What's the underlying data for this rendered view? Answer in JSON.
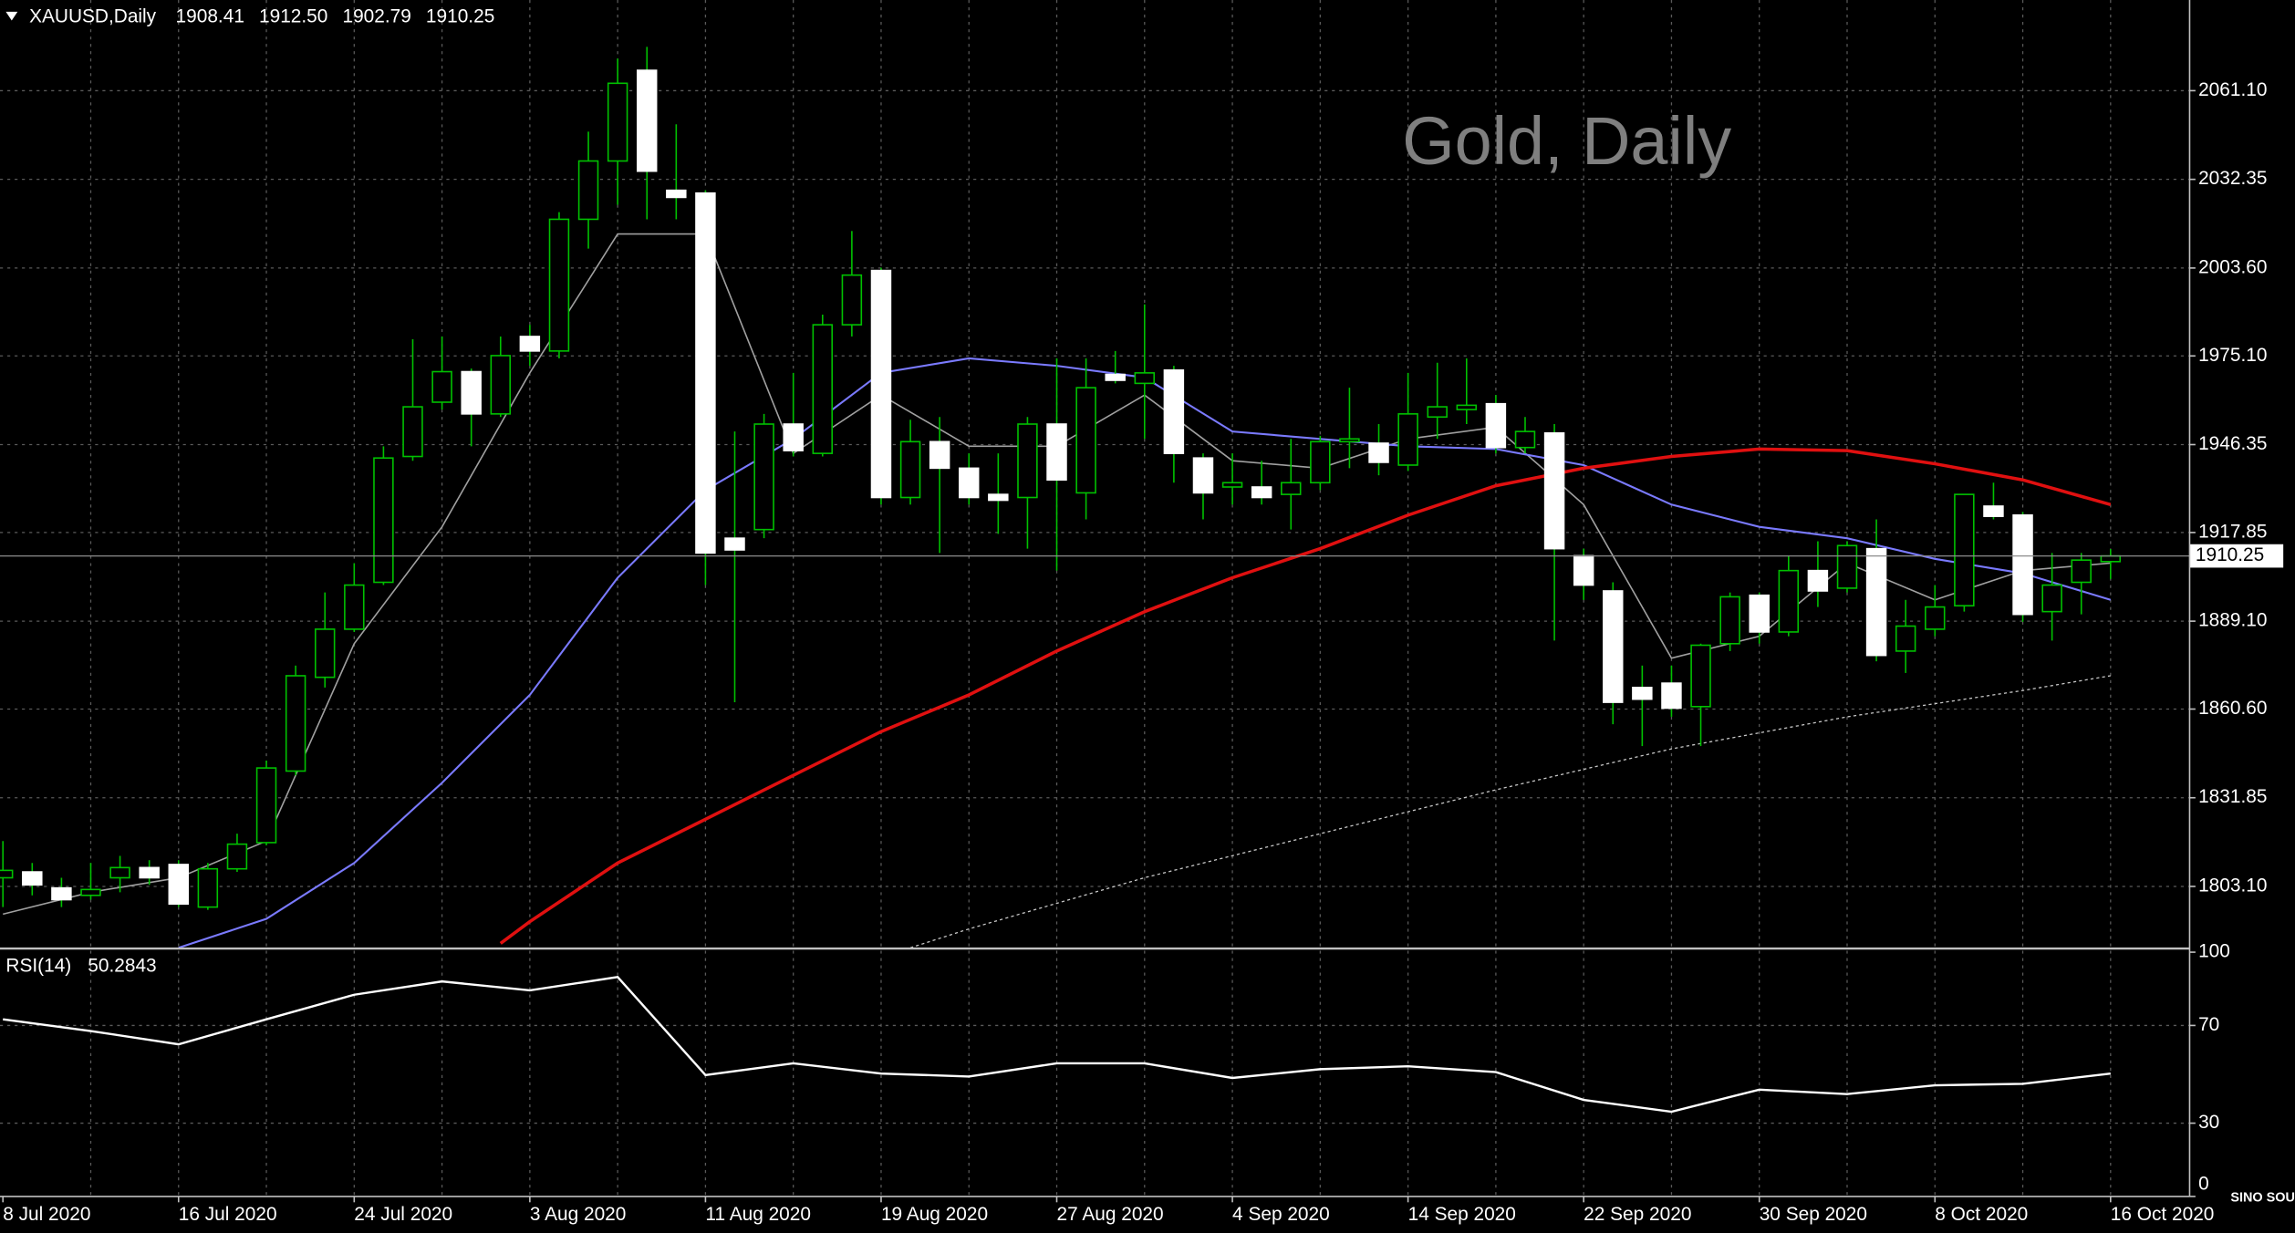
{
  "logo": "SINO SOUND",
  "chart_data": [
    {
      "type": "candlestick",
      "quote": {
        "symbol": "XAUUSD,Daily",
        "values": [
          1908.41,
          1912.5,
          1902.79,
          1910.25
        ],
        "value_labels": [
          "1908.41",
          "1912.50",
          "1902.79",
          "1910.25"
        ]
      },
      "watermark": "Gold, Daily",
      "categories": [
        "8 Jul 2020",
        null,
        null,
        null,
        null,
        null,
        "16 Jul 2020",
        null,
        null,
        null,
        null,
        null,
        "24 Jul 2020",
        null,
        null,
        null,
        null,
        null,
        "3 Aug 2020",
        null,
        null,
        null,
        null,
        null,
        "11 Aug 2020",
        null,
        null,
        null,
        null,
        null,
        "19 Aug 2020",
        null,
        null,
        null,
        null,
        null,
        "27 Aug 2020",
        null,
        null,
        null,
        null,
        null,
        "4 Sep 2020",
        null,
        null,
        null,
        null,
        null,
        "14 Sep 2020",
        null,
        null,
        null,
        null,
        null,
        "22 Sep 2020",
        null,
        null,
        null,
        null,
        null,
        "30 Sep 2020",
        null,
        null,
        null,
        null,
        null,
        "8 Oct 2020",
        null,
        null,
        null,
        null,
        null,
        "16 Oct 2020"
      ],
      "series": [
        {
          "name": "XAUUSD",
          "up_color": "#000000",
          "down_color": "#ffffff",
          "wick_color": "#00c000",
          "open": [
            1805.9,
            1807.8,
            1802.6,
            1800.2,
            1805.9,
            1809.2,
            1810.2,
            1796.4,
            1808.8,
            1817.3,
            1840.5,
            1870.9,
            1886.5,
            1901.7,
            1942.5,
            1960.1,
            1970.0,
            1956.3,
            1981.4,
            1976.7,
            2019.4,
            2038.3,
            2067.7,
            2028.8,
            2027.9,
            1916.0,
            1918.8,
            1953.0,
            1943.5,
            1985.2,
            2002.8,
            1929.2,
            1947.3,
            1938.7,
            1930.2,
            1929.2,
            1953.0,
            1930.7,
            1969.1,
            1966.2,
            1970.5,
            1942.0,
            1932.6,
            1932.6,
            1930.2,
            1934.0,
            1947.3,
            1946.8,
            1939.7,
            1955.3,
            1957.7,
            1959.6,
            1945.4,
            1950.1,
            1910.3,
            1898.9,
            1867.6,
            1869.0,
            1861.4,
            1881.8,
            1897.5,
            1885.6,
            1905.5,
            1899.8,
            1912.6,
            1879.4,
            1886.5,
            1894.1,
            1926.4,
            1923.5,
            1892.2,
            1901.7,
            1908.41
          ],
          "high": [
            1817.8,
            1810.7,
            1805.9,
            1810.7,
            1813.0,
            1811.6,
            1811.6,
            1810.7,
            1820.2,
            1843.9,
            1874.7,
            1898.4,
            1907.9,
            1945.8,
            1980.5,
            1981.4,
            1971.0,
            1981.4,
            1985.2,
            2021.7,
            2047.8,
            2071.5,
            2075.3,
            2050.2,
            2028.8,
            1950.6,
            1956.3,
            1969.6,
            1988.5,
            2015.6,
            2003.7,
            1954.4,
            1955.3,
            1943.5,
            1943.5,
            1955.3,
            1974.3,
            1974.3,
            1976.7,
            1991.8,
            1971.9,
            1943.5,
            1943.5,
            1941.1,
            1948.2,
            1949.2,
            1964.8,
            1953.0,
            1969.6,
            1972.9,
            1974.3,
            1962.4,
            1955.3,
            1953.0,
            1912.6,
            1901.7,
            1874.7,
            1874.7,
            1881.8,
            1898.4,
            1898.4,
            1910.3,
            1915.0,
            1915.0,
            1922.1,
            1896.0,
            1900.8,
            1930.2,
            1934.0,
            1924.5,
            1911.2,
            1911.2,
            1912.5
          ],
          "low": [
            1796.4,
            1800.2,
            1796.4,
            1798.8,
            1801.2,
            1803.6,
            1796.4,
            1795.5,
            1807.8,
            1816.4,
            1839.1,
            1867.6,
            1885.6,
            1900.8,
            1941.1,
            1957.7,
            1945.8,
            1955.3,
            1971.9,
            1974.3,
            2009.9,
            2024.1,
            2019.4,
            2019.4,
            1900.8,
            1862.8,
            1916.0,
            1942.5,
            1942.5,
            1981.4,
            1926.9,
            1926.9,
            1911.2,
            1926.9,
            1917.4,
            1912.6,
            1905.5,
            1922.1,
            1966.2,
            1948.2,
            1934.0,
            1922.1,
            1926.9,
            1926.9,
            1918.8,
            1931.6,
            1938.7,
            1936.4,
            1937.8,
            1948.2,
            1953.0,
            1943.5,
            1943.5,
            1882.8,
            1896.0,
            1855.7,
            1848.6,
            1858.1,
            1848.6,
            1879.4,
            1881.8,
            1884.2,
            1893.7,
            1898.4,
            1876.1,
            1872.3,
            1884.2,
            1892.2,
            1922.1,
            1888.9,
            1882.8,
            1891.3,
            1902.79
          ],
          "close": [
            1808.3,
            1803.6,
            1798.8,
            1802.1,
            1809.2,
            1805.9,
            1797.4,
            1808.8,
            1816.8,
            1841.5,
            1871.4,
            1886.5,
            1900.8,
            1942.0,
            1958.6,
            1970.0,
            1956.3,
            1975.2,
            1976.7,
            2019.4,
            2038.3,
            2063.5,
            2035.0,
            2026.5,
            1911.2,
            1912.2,
            1953.0,
            1944.4,
            1985.2,
            2001.3,
            1929.2,
            1947.3,
            1938.7,
            1929.2,
            1928.3,
            1953.0,
            1934.9,
            1964.8,
            1967.2,
            1969.6,
            1943.5,
            1930.7,
            1934.0,
            1929.2,
            1934.0,
            1947.3,
            1948.2,
            1940.6,
            1956.3,
            1958.6,
            1959.1,
            1945.4,
            1950.6,
            1912.6,
            1900.8,
            1862.8,
            1863.8,
            1860.9,
            1881.3,
            1897.0,
            1885.6,
            1905.5,
            1898.9,
            1913.6,
            1878.0,
            1887.5,
            1893.7,
            1930.2,
            1923.1,
            1891.3,
            1900.8,
            1908.9,
            1910.25
          ]
        }
      ],
      "overlays": [
        {
          "color": "#a0a0a0",
          "width": 1,
          "dashed": false,
          "x": [
            0,
            3,
            6,
            9,
            12,
            15,
            18,
            21,
            24,
            27,
            30,
            33,
            36,
            39,
            42,
            45,
            48,
            51,
            54,
            57,
            60,
            63,
            66,
            69,
            72
          ],
          "values": [
            1794.1,
            1801.2,
            1805.9,
            1817.8,
            1881.8,
            1919.7,
            1969.6,
            2014.6,
            2014.6,
            1943.5,
            1962.4,
            1945.8,
            1945.8,
            1962.4,
            1941.1,
            1938.7,
            1948.2,
            1952.0,
            1926.9,
            1877.1,
            1884.2,
            1907.9,
            1896.0,
            1905.5,
            1907.9
          ]
        },
        {
          "color": "#7a7aff",
          "width": 1.3,
          "dashed": false,
          "x": [
            6,
            9,
            12,
            15,
            18,
            21,
            24,
            27,
            30,
            33,
            36,
            39,
            42,
            45,
            48,
            51,
            54,
            57,
            60,
            63,
            66,
            69,
            72
          ],
          "values": [
            1783.2,
            1792.6,
            1810.7,
            1836.7,
            1865.2,
            1903.2,
            1931.6,
            1948.2,
            1969.6,
            1974.3,
            1971.9,
            1968.1,
            1950.6,
            1948.2,
            1945.8,
            1944.9,
            1939.7,
            1926.9,
            1919.7,
            1916.0,
            1909.3,
            1904.6,
            1896.0
          ]
        },
        {
          "color": "#e01010",
          "width": 2.2,
          "dashed": false,
          "x": [
            17,
            18,
            21,
            24,
            27,
            30,
            33,
            36,
            39,
            42,
            45,
            48,
            51,
            54,
            57,
            60,
            63,
            66,
            69,
            72
          ],
          "values": [
            1784.6,
            1791.7,
            1810.7,
            1824.9,
            1839.1,
            1853.3,
            1865.2,
            1879.4,
            1892.2,
            1903.2,
            1912.6,
            1923.5,
            1933.0,
            1938.7,
            1942.5,
            1944.9,
            1944.4,
            1940.1,
            1934.9,
            1926.9
          ]
        },
        {
          "color": "#c8c8c8",
          "width": 0.8,
          "dashed": true,
          "x": [
            31,
            33,
            39,
            45,
            51,
            57,
            63,
            69,
            72
          ],
          "values": [
            1783.2,
            1789.3,
            1805.9,
            1820.2,
            1834.4,
            1847.7,
            1858.1,
            1866.6,
            1871.4
          ]
        }
      ],
      "ylim": [
        1783.2,
        2090.5
      ],
      "yticks": [
        {
          "value": 2061.1,
          "label": "2061.10"
        },
        2032.35,
        {
          "value": 2003.6,
          "label": "2003.60"
        },
        {
          "value": 1975.1,
          "label": "1975.10"
        },
        1946.35,
        1917.85,
        {
          "value": 1889.1,
          "label": "1889.10"
        },
        {
          "value": 1860.6,
          "label": "1860.60"
        },
        1831.85,
        {
          "value": 1803.1,
          "label": "1803.10"
        }
      ],
      "grid": true
    },
    {
      "type": "line",
      "title": "RSI(14)",
      "color": "#ffffff",
      "x": [
        0,
        3,
        6,
        9,
        12,
        15,
        18,
        21,
        24,
        27,
        30,
        33,
        36,
        39,
        42,
        45,
        48,
        51,
        54,
        57,
        60,
        63,
        66,
        69,
        72
      ],
      "values": [
        72.5,
        67.7,
        62.3,
        72.5,
        82.6,
        88.0,
        84.4,
        89.8,
        49.7,
        54.5,
        50.3,
        49.1,
        54.5,
        54.5,
        48.5,
        52.1,
        53.3,
        50.9,
        39.5,
        34.7,
        43.7,
        41.9,
        45.5,
        46.1,
        50.2843
      ],
      "ylim": [
        0,
        100
      ],
      "yticks": [
        0,
        30,
        70,
        100
      ],
      "grid": true
    }
  ]
}
